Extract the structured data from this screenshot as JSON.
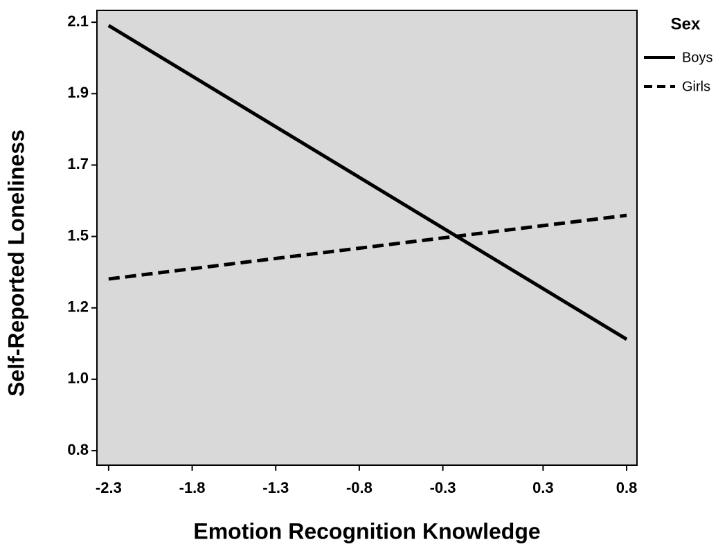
{
  "chart_data": {
    "type": "line",
    "x_label": "Emotion Recognition Knowledge",
    "y_label": "Self-Reported Loneliness",
    "legend_title": "Sex",
    "x": [
      -2.3,
      0.8
    ],
    "series": [
      {
        "name": "Boys",
        "color": "#000000",
        "dash": "solid",
        "values": [
          2.09,
          1.138
        ]
      },
      {
        "name": "Girls",
        "color": "#000000",
        "dash": "dashed",
        "values": [
          1.321,
          1.514
        ]
      }
    ],
    "xlim": [
      -2.37,
      0.862
    ],
    "xticks": [
      -2.3,
      -1.8,
      -1.3,
      -0.8,
      -0.3,
      0.3,
      0.8
    ],
    "ylim": [
      0.756,
      2.136
    ],
    "yticks": [
      0.8,
      {
        "value": 1.0167,
        "label": "1.0"
      },
      {
        "value": 1.2333,
        "label": "1.2"
      },
      {
        "value": 1.45,
        "label": "1.5"
      },
      {
        "value": 1.6667,
        "label": "1.7"
      },
      {
        "value": 1.8833,
        "label": "1.9"
      },
      2.1
    ],
    "background": "#d9d9d9",
    "legend_position": "right"
  }
}
